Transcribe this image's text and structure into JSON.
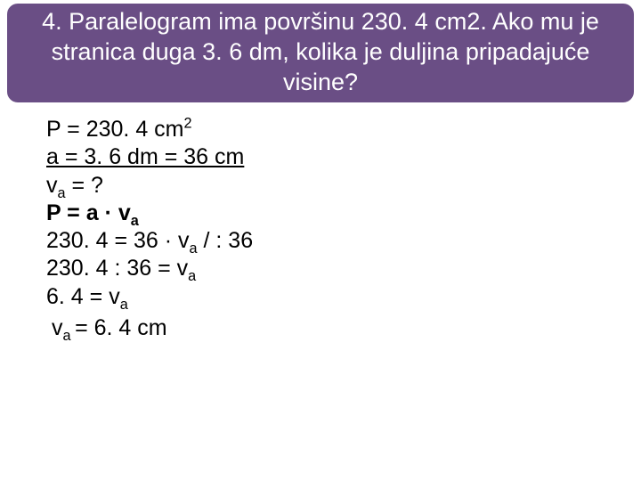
{
  "question": {
    "text": "4. Paralelogram ima površinu 230. 4 cm2. Ako mu je stranica duga 3. 6 dm, kolika je duljina pripadajuće visine?",
    "background_color": "#6a4e85",
    "text_color": "#ffffff",
    "border_radius": 14,
    "fontsize": 27
  },
  "solution": {
    "fontsize": 25,
    "text_color": "#000000",
    "lines": {
      "l1_pre": "P = 230. 4 cm",
      "l1_sup": "2",
      "l2": " a = 3. 6 dm = 36 cm",
      "l3_pre": "v",
      "l3_sub": "a",
      "l3_post": " = ?",
      "l4_pre": "P = a · v",
      "l4_sub": "a",
      "l5_pre": "230. 4 = 36 · v",
      "l5_sub": "a",
      "l5_post": " / : 36",
      "l6_pre": "230. 4 : 36 = v",
      "l6_sub": "a",
      "l7_pre": "6. 4 = v",
      "l7_sub": "a",
      "ans_pre": "v",
      "ans_sub": "a ",
      "ans_post": "= 6. 4 cm"
    }
  }
}
